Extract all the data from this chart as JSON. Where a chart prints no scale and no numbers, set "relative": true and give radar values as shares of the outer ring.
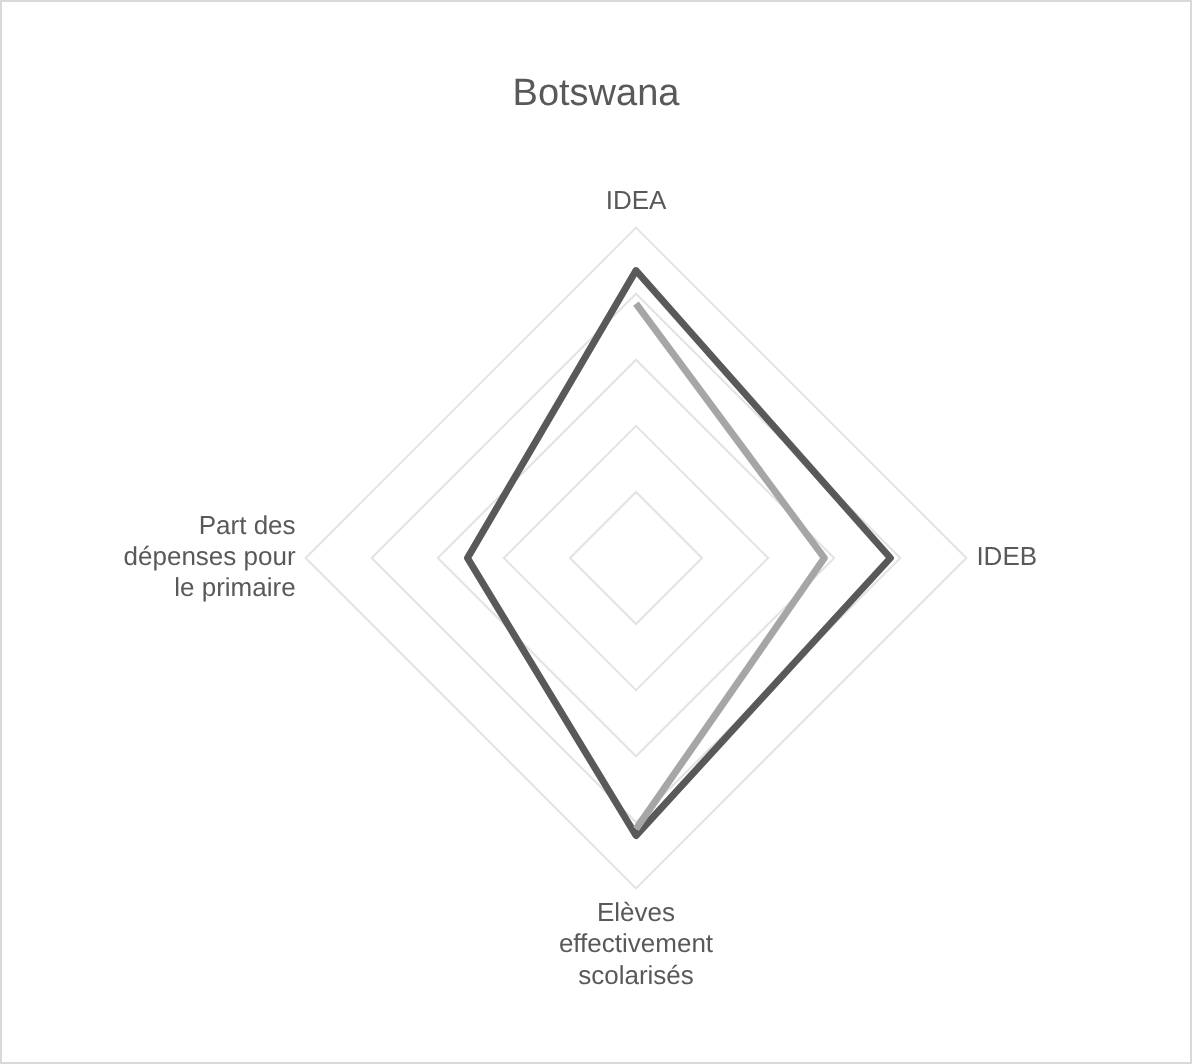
{
  "chart_data": {
    "type": "radar",
    "title": "Botswana",
    "categories": [
      "IDEA",
      "IDEB",
      "Elèves effectivement scolarisés",
      "Part des dépenses pour le primaire"
    ],
    "relative": true,
    "grid": true,
    "legend": false,
    "marker": "none",
    "series": [
      {
        "color": "#a6a6a6",
        "values": [
          0.77,
          0.57,
          0.82,
          null
        ]
      },
      {
        "color": "#595959",
        "values": [
          0.87,
          0.77,
          0.84,
          0.51
        ]
      }
    ]
  }
}
